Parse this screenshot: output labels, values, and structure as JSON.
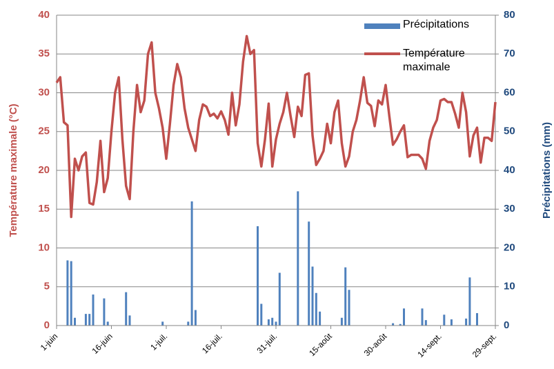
{
  "chart_data": {
    "type": "bar_line",
    "y_label": "Température maximale (°C)",
    "y2_label": "Précipitations (mm)",
    "categories": [
      "1-juin",
      null,
      null,
      null,
      null,
      null,
      null,
      null,
      null,
      null,
      null,
      null,
      null,
      null,
      null,
      "16-juin",
      null,
      null,
      null,
      null,
      null,
      null,
      null,
      null,
      null,
      null,
      null,
      null,
      null,
      null,
      "1-juil.",
      null,
      null,
      null,
      null,
      null,
      null,
      null,
      null,
      null,
      null,
      null,
      null,
      null,
      null,
      "16-juil.",
      null,
      null,
      null,
      null,
      null,
      null,
      null,
      null,
      null,
      null,
      null,
      null,
      null,
      null,
      "31-juil.",
      null,
      null,
      null,
      null,
      null,
      null,
      null,
      null,
      null,
      null,
      null,
      null,
      null,
      null,
      "15-août",
      null,
      null,
      null,
      null,
      null,
      null,
      null,
      null,
      null,
      null,
      null,
      null,
      null,
      null,
      "30-août",
      null,
      null,
      null,
      null,
      null,
      null,
      null,
      null,
      null,
      null,
      null,
      null,
      null,
      null,
      "14-sept.",
      null,
      null,
      null,
      null,
      null,
      null,
      null,
      null,
      null,
      null,
      null,
      null,
      null,
      null,
      "29-sept."
    ],
    "series": [
      {
        "name": "Précipitations",
        "type": "bar",
        "axis": "y2",
        "color": "#4f81bd",
        "values": [
          0,
          0,
          0,
          16.8,
          16.6,
          2,
          0,
          0,
          3,
          3,
          8,
          0,
          0,
          7,
          1,
          0,
          0,
          0,
          0,
          8.6,
          2.6,
          0,
          0,
          0,
          0,
          0,
          0,
          0,
          0,
          1,
          0,
          0,
          0,
          0,
          0,
          0,
          1,
          32,
          4,
          0,
          0,
          0,
          0,
          0,
          0,
          0,
          0,
          0,
          0,
          0,
          0,
          0,
          0,
          0,
          0,
          25.6,
          5.6,
          0,
          1.6,
          2,
          1,
          13.6,
          0,
          0,
          0,
          0,
          34.6,
          0,
          0,
          26.8,
          15.2,
          8.4,
          3.6,
          0,
          0,
          0,
          0,
          0,
          2,
          15,
          9.2,
          0,
          0,
          0,
          0,
          0,
          0,
          0,
          0,
          0,
          0,
          0,
          0.6,
          0,
          0.4,
          4.4,
          0,
          0,
          0,
          0,
          4.4,
          1.4,
          0,
          0,
          0,
          0,
          2.8,
          0,
          1.6,
          0,
          0,
          0,
          1.8,
          12.4,
          0,
          3.2,
          0,
          0,
          0,
          0,
          0
        ]
      },
      {
        "name": "Température maximale",
        "type": "line",
        "axis": "y",
        "color": "#c0504d",
        "values": [
          31.3,
          32,
          26.2,
          25.8,
          14,
          21.5,
          20,
          21.8,
          22.3,
          15.8,
          15.6,
          18.5,
          23.8,
          17.2,
          19,
          25,
          30,
          32,
          24,
          18,
          16.3,
          25,
          31,
          27.5,
          29,
          35,
          36.5,
          30,
          28,
          25.5,
          21.5,
          26,
          31,
          33.7,
          32,
          28,
          25.5,
          24,
          22.5,
          26.5,
          28.5,
          28.2,
          27,
          27.3,
          26.7,
          27.6,
          26.5,
          24.6,
          30,
          25.8,
          28.5,
          34,
          37.3,
          35,
          35.5,
          23.5,
          20.5,
          24,
          28.6,
          20.5,
          24,
          26,
          27.5,
          30,
          27,
          24.3,
          28.2,
          27,
          32.3,
          32.5,
          24.5,
          20.7,
          21.5,
          22.5,
          26,
          23.5,
          27.5,
          29,
          23.5,
          20.5,
          21.8,
          25,
          26.5,
          29,
          32,
          28.7,
          28.3,
          25.7,
          29,
          28.5,
          31,
          27,
          23.3,
          24,
          25,
          25.8,
          21.7,
          22,
          22,
          22,
          21.5,
          20.2,
          23.8,
          25.5,
          26.5,
          29,
          29.2,
          28.8,
          28.8,
          27.3,
          25.5,
          30,
          27.5,
          21.8,
          24.5,
          25.5,
          21,
          24.2,
          24.2,
          23.8,
          28.8
        ]
      }
    ],
    "ylim": [
      0,
      40
    ],
    "yticks": [
      0,
      5,
      10,
      15,
      20,
      25,
      30,
      35,
      40
    ],
    "y2lim": [
      0,
      80
    ],
    "y2ticks": [
      0,
      10,
      20,
      30,
      40,
      50,
      60,
      70,
      80
    ],
    "grid": true,
    "legend": "top-right"
  }
}
